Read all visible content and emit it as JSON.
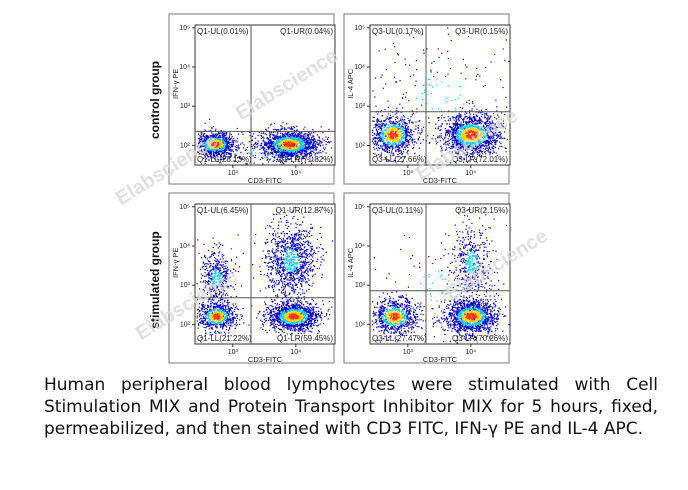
{
  "groups": [
    {
      "label": "control group"
    },
    {
      "label": "stimulated group"
    }
  ],
  "watermark": "Elabscience",
  "caption": "Human peripheral blood lymphocytes were stimulated with Cell Stimulation MIX and Protein Transport Inhibitor MIX for 5 hours, fixed, permeabilized, and then stained with CD3 FITC, IFN-γ PE and IL-4 APC.",
  "colors": {
    "low_density": "#0000cc",
    "mid_density": "#00ccff",
    "high_density": "#ffd000",
    "peak_density": "#ff3300"
  },
  "chart_data": [
    {
      "type": "scatter",
      "id": "control-ifn",
      "xlabel": "CD3-FITC",
      "ylabel": "IFN-γ PE",
      "xticks": [
        "10³",
        "10⁴"
      ],
      "yticks": [
        "10⁵",
        "10⁴",
        "10³",
        "10²"
      ],
      "quadrants": {
        "UL": "Q1-UL(0.01%)",
        "UR": "Q1-UR(0.04%)",
        "LL": "Q1-LL(28.13%)",
        "LR": "Q1-LR(71.82%)"
      },
      "gate": [
        0.4,
        0.76
      ],
      "clusters": [
        {
          "x": 0.14,
          "y": 0.85,
          "sx": 0.07,
          "sy": 0.045,
          "n": 900,
          "core": true
        },
        {
          "x": 0.67,
          "y": 0.85,
          "sx": 0.1,
          "sy": 0.05,
          "n": 1500,
          "core": true
        },
        {
          "x": 0.5,
          "y": 0.92,
          "sx": 0.3,
          "sy": 0.05,
          "n": 160,
          "core": false
        }
      ]
    },
    {
      "type": "scatter",
      "id": "control-il4",
      "xlabel": "CD3-FITC",
      "ylabel": "IL-4 APC",
      "xticks": [
        "10³",
        "10⁴"
      ],
      "yticks": [
        "10⁵",
        "10⁴",
        "10³",
        "10²"
      ],
      "quadrants": {
        "UL": "Q3-UL(0.17%)",
        "UR": "Q3-UR(0.15%)",
        "LL": "Q3-LL(27.66%)",
        "LR": "Q3-LR(72.01%)"
      },
      "gate": [
        0.4,
        0.62
      ],
      "clusters": [
        {
          "x": 0.16,
          "y": 0.78,
          "sx": 0.08,
          "sy": 0.07,
          "n": 900,
          "core": true
        },
        {
          "x": 0.72,
          "y": 0.78,
          "sx": 0.1,
          "sy": 0.07,
          "n": 1500,
          "core": true
        },
        {
          "x": 0.5,
          "y": 0.5,
          "sx": 0.35,
          "sy": 0.22,
          "n": 220,
          "core": false
        }
      ]
    },
    {
      "type": "scatter",
      "id": "stimulated-ifn",
      "xlabel": "CD3-FITC",
      "ylabel": "IFN-γ PE",
      "xticks": [
        "10³",
        "10⁴"
      ],
      "yticks": [
        "10⁵",
        "10⁴",
        "10³",
        "10²"
      ],
      "quadrants": {
        "UL": "Q1-UL(6.45%)",
        "UR": "Q1-UR(12.87%)",
        "LL": "Q1-LL(21.22%)",
        "LR": "Q1-LR(59.45%)"
      },
      "gate": [
        0.4,
        0.67
      ],
      "clusters": [
        {
          "x": 0.15,
          "y": 0.8,
          "sx": 0.07,
          "sy": 0.05,
          "n": 700,
          "core": true
        },
        {
          "x": 0.7,
          "y": 0.8,
          "sx": 0.09,
          "sy": 0.05,
          "n": 1300,
          "core": true
        },
        {
          "x": 0.68,
          "y": 0.4,
          "sx": 0.09,
          "sy": 0.14,
          "n": 1000,
          "core": false
        },
        {
          "x": 0.15,
          "y": 0.52,
          "sx": 0.06,
          "sy": 0.1,
          "n": 450,
          "core": false
        }
      ]
    },
    {
      "type": "scatter",
      "id": "stimulated-il4",
      "xlabel": "CD3-FITC",
      "ylabel": "IL-4 APC",
      "xticks": [
        "10³",
        "10⁴"
      ],
      "yticks": [
        "10⁵",
        "10⁴",
        "10³",
        "10²"
      ],
      "quadrants": {
        "UL": "Q3-UL(0.11%)",
        "UR": "Q3-UR(2.15%)",
        "LL": "Q3-LL(27.47%)",
        "LR": "Q3-LR(70.26%)"
      },
      "gate": [
        0.4,
        0.62
      ],
      "clusters": [
        {
          "x": 0.17,
          "y": 0.8,
          "sx": 0.08,
          "sy": 0.06,
          "n": 800,
          "core": true
        },
        {
          "x": 0.72,
          "y": 0.8,
          "sx": 0.09,
          "sy": 0.06,
          "n": 1400,
          "core": true
        },
        {
          "x": 0.72,
          "y": 0.42,
          "sx": 0.07,
          "sy": 0.14,
          "n": 420,
          "core": false
        },
        {
          "x": 0.5,
          "y": 0.6,
          "sx": 0.3,
          "sy": 0.2,
          "n": 150,
          "core": false
        }
      ]
    }
  ]
}
